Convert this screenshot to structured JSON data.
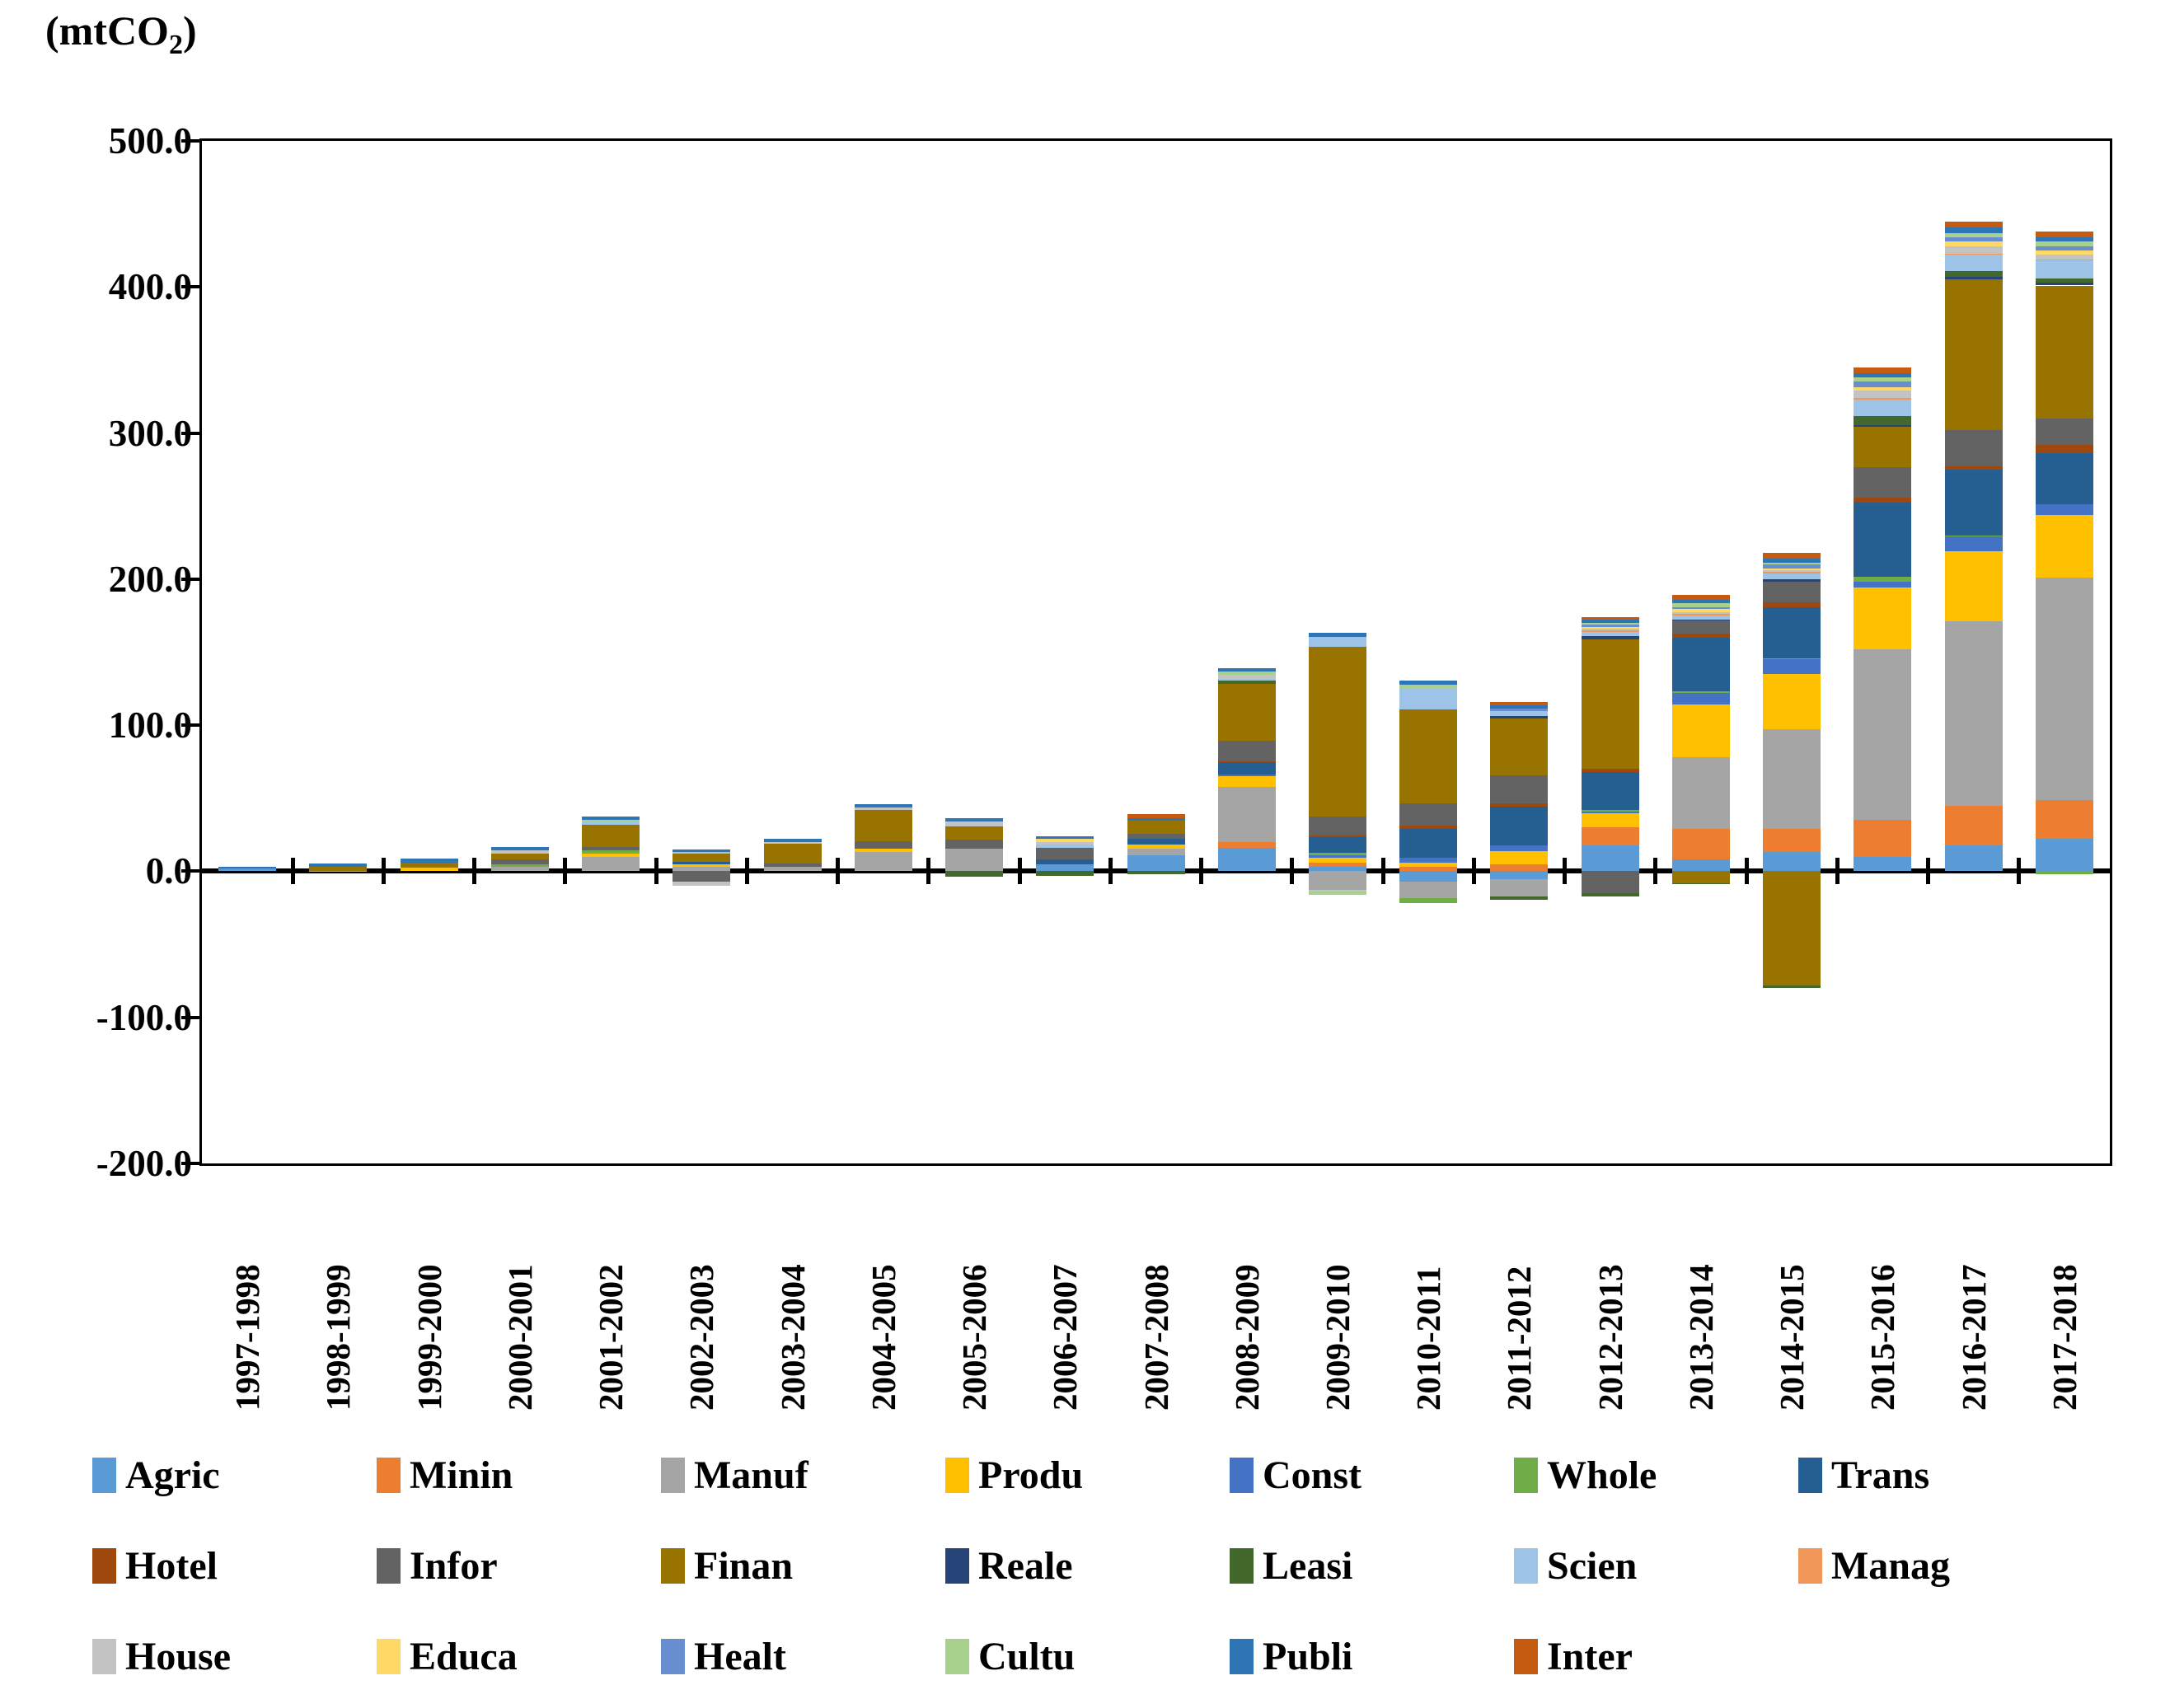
{
  "title": {
    "prefix": "(mtCO",
    "sub": "2",
    "suffix": ")"
  },
  "chart_data": {
    "type": "bar",
    "stacked": true,
    "title": "(mtCO2)",
    "ylabel": "mtCO2",
    "xlabel": "",
    "ylim": [
      -200,
      500
    ],
    "y_ticks": [
      "500.0",
      "400.0",
      "300.0",
      "200.0",
      "100.0",
      "0.0",
      "-100.0",
      "-200.0"
    ],
    "y_tick_values": [
      500,
      400,
      300,
      200,
      100,
      0,
      -100,
      -200
    ],
    "grid": false,
    "legend_position": "bottom",
    "categories": [
      "1997-1998",
      "1998-1999",
      "1999-2000",
      "2000-2001",
      "2001-2002",
      "2002-2003",
      "2003-2004",
      "2004-2005",
      "2005-2006",
      "2006-2007",
      "2007-2008",
      "2008-2009",
      "2009-2010",
      "2010-2011",
      "2011-2012",
      "2012-2013",
      "2013-2014",
      "2014-2015",
      "2015-2016",
      "2016-2017",
      "2017-2018"
    ],
    "series": [
      {
        "name": "Agric",
        "color": "#5B9BD5",
        "values": [
          2,
          0,
          0,
          0,
          0,
          0,
          0,
          0,
          0,
          5,
          11,
          16,
          3,
          -7,
          -5.5,
          18,
          8,
          13,
          10,
          18,
          22
        ]
      },
      {
        "name": "Minin",
        "color": "#ED7D31",
        "values": [
          0,
          0,
          0,
          0,
          0,
          0,
          0,
          0,
          0,
          0,
          0,
          4,
          3,
          3,
          5,
          12,
          21,
          16,
          25,
          27,
          27
        ]
      },
      {
        "name": "Manuf",
        "color": "#A5A5A5",
        "values": [
          0,
          0.5,
          0,
          3,
          9.9,
          3,
          3,
          13,
          15.5,
          0,
          4.3,
          38,
          -13,
          -11.5,
          -12,
          0,
          49,
          68,
          117,
          126,
          152
        ]
      },
      {
        "name": "Produ",
        "color": "#FFC000",
        "values": [
          0,
          0,
          2.4,
          0,
          2.4,
          1.5,
          0,
          2.4,
          0,
          0,
          3.2,
          7,
          3,
          3,
          8.5,
          10,
          36,
          38,
          42,
          48,
          43
        ]
      },
      {
        "name": "Const",
        "color": "#4472C4",
        "values": [
          0,
          0,
          0,
          0,
          0,
          0,
          0,
          0,
          0,
          0,
          0,
          1,
          2,
          3,
          4.5,
          1,
          8,
          10,
          4.5,
          10,
          7
        ]
      },
      {
        "name": "Whole",
        "color": "#70AD47",
        "values": [
          0,
          0,
          0,
          1.5,
          1.9,
          0,
          0,
          0,
          0,
          0,
          0,
          0,
          1.5,
          -3,
          0,
          1,
          1,
          1,
          3,
          1,
          -2
        ]
      },
      {
        "name": "Trans",
        "color": "#255E91",
        "values": [
          0,
          0,
          0,
          0,
          0,
          2,
          0,
          0,
          0,
          3,
          3.7,
          8.5,
          11,
          20,
          26.5,
          26,
          37,
          35,
          51,
          45,
          35
        ]
      },
      {
        "name": "Hotel",
        "color": "#9E480E",
        "values": [
          0,
          0,
          0,
          0,
          0,
          0,
          0,
          0,
          0,
          0,
          0,
          1,
          1,
          2,
          2,
          2,
          2.5,
          3,
          3,
          2,
          6
        ]
      },
      {
        "name": "Infor",
        "color": "#636363",
        "values": [
          0,
          0,
          0,
          3.4,
          2.6,
          -7,
          2.6,
          5,
          6.2,
          7.9,
          3.7,
          14,
          13,
          15.5,
          19,
          -15,
          9,
          14,
          21,
          25,
          18
        ]
      },
      {
        "name": "Finan",
        "color": "#997300",
        "values": [
          0,
          2.6,
          3.7,
          4.1,
          15,
          5.5,
          13,
          21.7,
          8.8,
          0,
          9,
          39,
          116,
          64.5,
          39,
          89,
          -8,
          -78,
          28,
          103,
          91
        ]
      },
      {
        "name": "Reale",
        "color": "#264478",
        "values": [
          0,
          0,
          0,
          0,
          0,
          0,
          0,
          0,
          0,
          0,
          0,
          0,
          0,
          0,
          2,
          2,
          1,
          2,
          1,
          2,
          2
        ]
      },
      {
        "name": "Leasi",
        "color": "#43682B",
        "values": [
          0,
          0,
          0,
          0,
          0,
          0,
          0,
          0,
          -3.7,
          -3,
          -2,
          2.3,
          0,
          0,
          -2,
          -2,
          -1,
          -2,
          6,
          4,
          3
        ]
      },
      {
        "name": "Scien",
        "color": "#9DC3E6",
        "values": [
          0,
          0,
          0,
          0,
          1.5,
          1,
          0,
          0,
          0,
          2.2,
          0,
          1,
          7,
          14.5,
          3,
          3,
          2.5,
          4,
          11.5,
          11,
          12
        ]
      },
      {
        "name": "Manag",
        "color": "#F1975A",
        "values": [
          0,
          0,
          0,
          0,
          0,
          0,
          0,
          0,
          0,
          0,
          0,
          0,
          0,
          0,
          0,
          1,
          1,
          1,
          1,
          1,
          1
        ]
      },
      {
        "name": "House",
        "color": "#C3C3C3",
        "values": [
          0,
          0,
          0,
          2.4,
          0,
          -3,
          1.5,
          1.7,
          3.4,
          1.9,
          0,
          2.8,
          -1,
          0,
          0,
          1,
          1.5,
          1,
          5,
          5,
          3
        ]
      },
      {
        "name": "Educa",
        "color": "#FFD966",
        "values": [
          0,
          0,
          0,
          0,
          0,
          0,
          0,
          0,
          0,
          2.2,
          0,
          0,
          0,
          0,
          0,
          1,
          2,
          1,
          2.5,
          3,
          3
        ]
      },
      {
        "name": "Healt",
        "color": "#698ED0",
        "values": [
          0,
          0,
          0,
          0,
          0,
          0,
          0,
          0,
          0,
          0,
          0,
          0,
          0,
          0,
          2,
          2,
          1.5,
          3,
          4,
          3,
          3
        ]
      },
      {
        "name": "Cultu",
        "color": "#A9D18E",
        "values": [
          0,
          0,
          0,
          0,
          1.9,
          0,
          0,
          0,
          0,
          0,
          0,
          2.3,
          -2,
          2,
          0,
          1,
          2.5,
          1,
          2.5,
          3,
          3
        ]
      },
      {
        "name": "Publi",
        "color": "#2E75B6",
        "values": [
          1.2,
          2.2,
          2.8,
          2.2,
          2.4,
          2,
          2.2,
          2.4,
          2.2,
          1.9,
          1.5,
          2.3,
          3,
          3,
          2,
          2,
          2.5,
          3,
          3,
          4,
          3
        ]
      },
      {
        "name": "Inter",
        "color": "#C55A11",
        "values": [
          0,
          0,
          0,
          0,
          0,
          0,
          0,
          0,
          0,
          0,
          3,
          0,
          0,
          0,
          2.5,
          2,
          3,
          4,
          4,
          4,
          4
        ]
      }
    ],
    "legend_rows": [
      [
        "Agric",
        "Minin",
        "Manuf",
        "Produ",
        "Const",
        "Whole",
        "Trans"
      ],
      [
        "Hotel",
        "Infor",
        "Finan",
        "Reale",
        "Leasi",
        "Scien",
        "Manag"
      ],
      [
        "House",
        "Educa",
        "Healt",
        "Cultu",
        "Publi",
        "Inter"
      ]
    ]
  }
}
